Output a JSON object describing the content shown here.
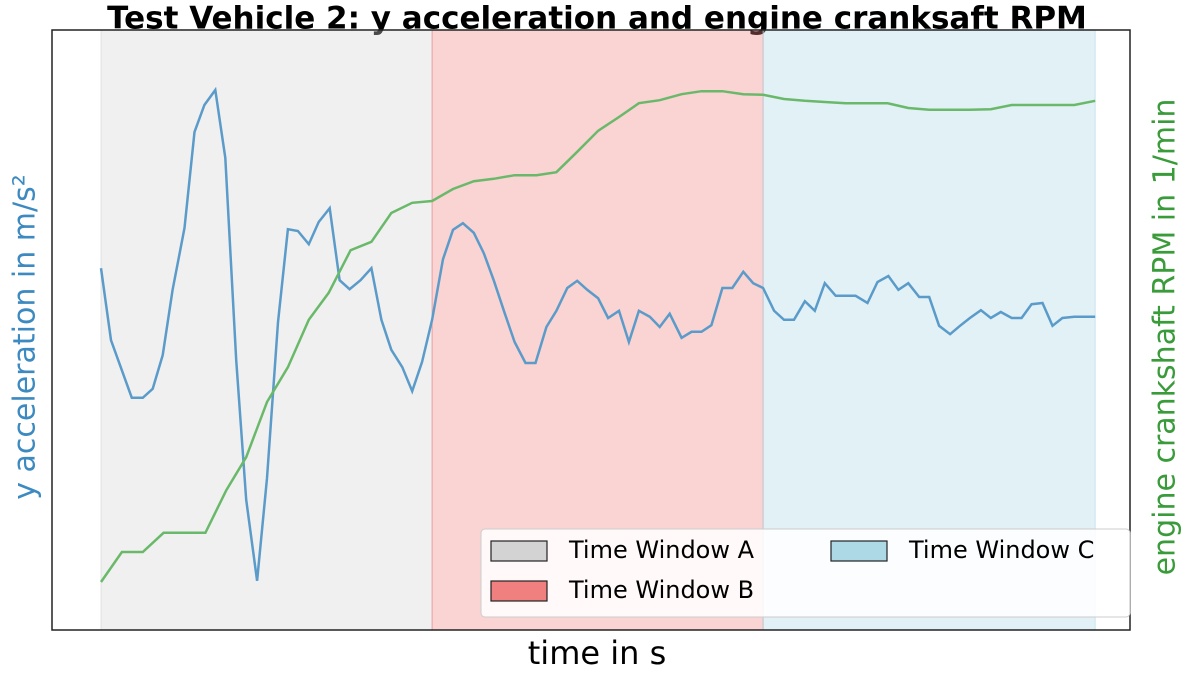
{
  "chart_data": {
    "type": "line",
    "title": "Test Vehicle 2: y acceleration and engine cranksaft RPM",
    "x_label": "time in s",
    "y_label": "y acceleration in m/s²",
    "y2_label": "engine crankshaft RPM in 1/min",
    "xlim": [
      -4.93,
      103.5
    ],
    "ylim": [
      0,
      100
    ],
    "y2lim": [
      0,
      100
    ],
    "span_alpha": 0.35,
    "legend_position": "lower right",
    "spans": [
      {
        "name": "Time Window A",
        "color": "#d3d3d3",
        "start": 0,
        "end": 33.3
      },
      {
        "name": "Time Window B",
        "color": "#f08080",
        "start": 33.3,
        "end": 66.6
      },
      {
        "name": "Time Window C",
        "color": "#add8e6",
        "start": 66.6,
        "end": 100
      }
    ],
    "series": [
      {
        "name": "y acceleration",
        "color": "#5b9bc9",
        "axis": "y",
        "x": [
          0,
          1.0,
          3.1,
          4.2,
          5.2,
          6.2,
          7.2,
          8.4,
          9.4,
          10.4,
          11.5,
          12.5,
          13.6,
          14.6,
          15.7,
          16.7,
          17.8,
          18.8,
          19.8,
          20.9,
          21.9,
          23.0,
          24.0,
          25.0,
          26.1,
          27.2,
          28.2,
          29.2,
          30.3,
          31.3,
          32.3,
          33.3,
          34.4,
          35.4,
          36.4,
          37.5,
          38.5,
          39.5,
          40.6,
          41.6,
          42.7,
          43.7,
          44.8,
          45.8,
          46.9,
          47.9,
          48.9,
          50.0,
          51.0,
          52.1,
          53.1,
          54.1,
          55.2,
          56.2,
          57.2,
          58.4,
          59.4,
          60.4,
          61.4,
          62.5,
          63.5,
          64.6,
          65.6,
          66.6,
          67.7,
          68.7,
          69.7,
          70.8,
          71.8,
          72.8,
          73.9,
          74.9,
          75.9,
          77.1,
          78.1,
          79.2,
          80.2,
          81.2,
          82.3,
          83.3,
          84.3,
          85.4,
          86.4,
          87.4,
          88.5,
          89.5,
          90.5,
          91.6,
          92.6,
          93.6,
          94.7,
          95.7,
          96.7,
          97.9,
          100
        ],
        "values": [
          60.3,
          48.3,
          38.7,
          38.7,
          40.2,
          45.8,
          56.7,
          67,
          83,
          87.5,
          90,
          78.7,
          45,
          21.7,
          8.2,
          25.3,
          51.3,
          66.8,
          66.5,
          64.3,
          68,
          70.3,
          58.3,
          56.8,
          58.3,
          60.3,
          51.7,
          46.7,
          43.8,
          39.8,
          44.7,
          51.7,
          61.8,
          66.7,
          67.8,
          66.2,
          62.8,
          58.3,
          52.8,
          48,
          44.5,
          44.5,
          50.5,
          53.2,
          57,
          58.2,
          56.7,
          55.3,
          52,
          53.2,
          48,
          53.2,
          52.2,
          50.5,
          52.7,
          48.7,
          49.7,
          49.7,
          50.8,
          57,
          57,
          59.7,
          57.8,
          57,
          53.2,
          51.7,
          51.7,
          54.8,
          53.2,
          57.8,
          55.7,
          55.7,
          55.7,
          54.5,
          58,
          59,
          56.7,
          57.8,
          55.5,
          55.5,
          50.7,
          49.3,
          50.7,
          52,
          53.3,
          52,
          53,
          52,
          52,
          54.3,
          54.5,
          50.7,
          52,
          52.2,
          52.2
        ]
      },
      {
        "name": "engine crankshaft RPM",
        "color": "#6ab96a",
        "axis": "y2",
        "x": [
          0,
          2.1,
          4.2,
          6.3,
          10.5,
          12.6,
          14.6,
          16.7,
          18.8,
          20.9,
          22.9,
          25.1,
          27.2,
          29.2,
          31.3,
          33.3,
          35.4,
          37.5,
          39.5,
          41.6,
          43.8,
          45.8,
          47.9,
          50.0,
          52.1,
          54.1,
          56.2,
          58.4,
          60.4,
          62.5,
          64.6,
          66.6,
          68.7,
          70.8,
          72.8,
          74.9,
          79.1,
          81.2,
          83.3,
          87.4,
          89.5,
          91.6,
          97.9,
          100
        ],
        "values": [
          8,
          13,
          13,
          16.2,
          16.2,
          23.3,
          28.8,
          38,
          43.8,
          51.7,
          56.2,
          63.3,
          64.7,
          69.5,
          71.2,
          71.5,
          73.5,
          74.8,
          75.2,
          75.8,
          75.8,
          76.3,
          79.7,
          83.2,
          85.5,
          87.8,
          88.3,
          89.3,
          89.8,
          89.8,
          89.3,
          89.2,
          88.5,
          88.2,
          88,
          87.8,
          87.8,
          87,
          86.7,
          86.7,
          86.8,
          87.5,
          87.5,
          88.2
        ]
      }
    ]
  }
}
